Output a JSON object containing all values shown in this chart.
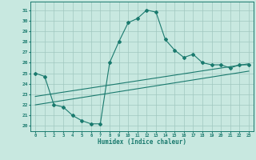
{
  "line1_x": [
    0,
    1,
    2,
    3,
    4,
    5,
    6,
    7,
    8,
    9,
    10,
    11,
    12,
    13,
    14,
    15,
    16,
    17,
    18,
    19,
    20,
    21,
    22,
    23
  ],
  "line1_y": [
    25.0,
    24.7,
    22.0,
    21.8,
    21.0,
    20.5,
    20.2,
    20.2,
    26.0,
    28.0,
    29.8,
    30.2,
    31.0,
    30.8,
    28.2,
    27.2,
    26.5,
    26.8,
    26.0,
    25.8,
    25.8,
    25.5,
    25.8,
    25.8
  ],
  "line2_x": [
    0,
    23
  ],
  "line2_y": [
    22.0,
    25.2
  ],
  "line3_x": [
    0,
    23
  ],
  "line3_y": [
    22.8,
    25.9
  ],
  "color": "#1a7a6e",
  "bg_color": "#c8e8e0",
  "grid_color": "#a0c8c0",
  "ylabel_vals": [
    20,
    21,
    22,
    23,
    24,
    25,
    26,
    27,
    28,
    29,
    30,
    31
  ],
  "xlabel": "Humidex (Indice chaleur)",
  "xlim": [
    -0.5,
    23.5
  ],
  "ylim": [
    19.5,
    31.8
  ]
}
